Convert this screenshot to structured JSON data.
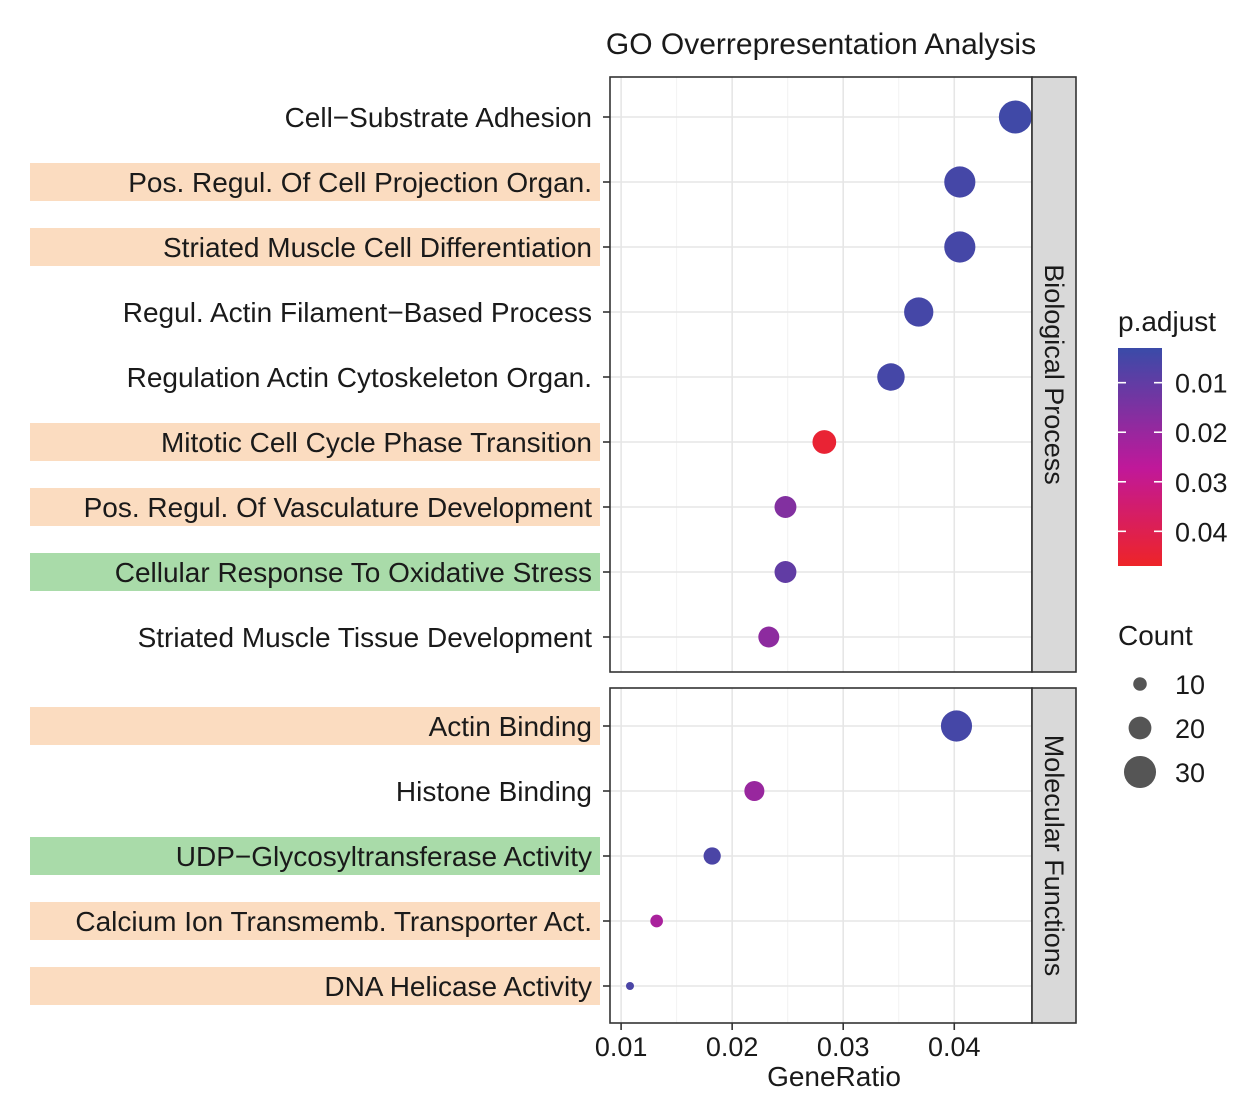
{
  "chart_data": {
    "type": "scatter",
    "title": "GO Overrepresentation Analysis",
    "xlabel": "GeneRatio",
    "x_ticks": [
      "0.01",
      "0.02",
      "0.03",
      "0.04"
    ],
    "xlim": [
      0.009,
      0.047
    ],
    "color_legend": {
      "title": "p.adjust",
      "ticks": [
        "0.01",
        "0.02",
        "0.03",
        "0.04"
      ],
      "range": [
        0.003,
        0.047
      ],
      "low_color": "#3a4ba8",
      "mid_color": "#c0189a",
      "high_color": "#ee2428"
    },
    "size_legend": {
      "title": "Count",
      "ticks": [
        "10",
        "20",
        "30"
      ]
    },
    "highlight_colors": {
      "orange": "#fbdcc0",
      "green": "#a9dba9"
    },
    "panels": [
      {
        "strip": "Biological Process",
        "terms": [
          {
            "label": "Cell−Substrate Adhesion",
            "gene_ratio": 0.0455,
            "p_adjust": 0.004,
            "count": 31,
            "highlight": "none"
          },
          {
            "label": "Pos. Regul. Of Cell Projection Organ.",
            "gene_ratio": 0.0405,
            "p_adjust": 0.005,
            "count": 29,
            "highlight": "orange"
          },
          {
            "label": "Striated Muscle Cell Differentiation",
            "gene_ratio": 0.0405,
            "p_adjust": 0.005,
            "count": 29,
            "highlight": "orange"
          },
          {
            "label": "Regul. Actin Filament−Based Process",
            "gene_ratio": 0.0368,
            "p_adjust": 0.005,
            "count": 27,
            "highlight": "none"
          },
          {
            "label": "Regulation Actin Cytoskeleton Organ.",
            "gene_ratio": 0.0343,
            "p_adjust": 0.005,
            "count": 25,
            "highlight": "none"
          },
          {
            "label": "Mitotic Cell Cycle Phase Transition",
            "gene_ratio": 0.0283,
            "p_adjust": 0.045,
            "count": 21,
            "highlight": "orange"
          },
          {
            "label": "Pos. Regul. Of Vasculature Development",
            "gene_ratio": 0.0248,
            "p_adjust": 0.016,
            "count": 19,
            "highlight": "orange"
          },
          {
            "label": "Cellular Response To Oxidative Stress",
            "gene_ratio": 0.0248,
            "p_adjust": 0.01,
            "count": 19,
            "highlight": "green"
          },
          {
            "label": "Striated Muscle Tissue Development",
            "gene_ratio": 0.0233,
            "p_adjust": 0.018,
            "count": 18,
            "highlight": "none"
          }
        ]
      },
      {
        "strip": "Molecular Functions",
        "terms": [
          {
            "label": "Actin Binding",
            "gene_ratio": 0.0402,
            "p_adjust": 0.005,
            "count": 29,
            "highlight": "orange"
          },
          {
            "label": "Histone Binding",
            "gene_ratio": 0.022,
            "p_adjust": 0.02,
            "count": 17,
            "highlight": "none"
          },
          {
            "label": "UDP−Glycosyltransferase Activity",
            "gene_ratio": 0.0182,
            "p_adjust": 0.006,
            "count": 14,
            "highlight": "green"
          },
          {
            "label": "Calcium Ion Transmemb. Transporter Act.",
            "gene_ratio": 0.0132,
            "p_adjust": 0.023,
            "count": 9,
            "highlight": "orange"
          },
          {
            "label": "DNA Helicase Activity",
            "gene_ratio": 0.0108,
            "p_adjust": 0.006,
            "count": 4,
            "highlight": "orange"
          }
        ]
      }
    ]
  }
}
